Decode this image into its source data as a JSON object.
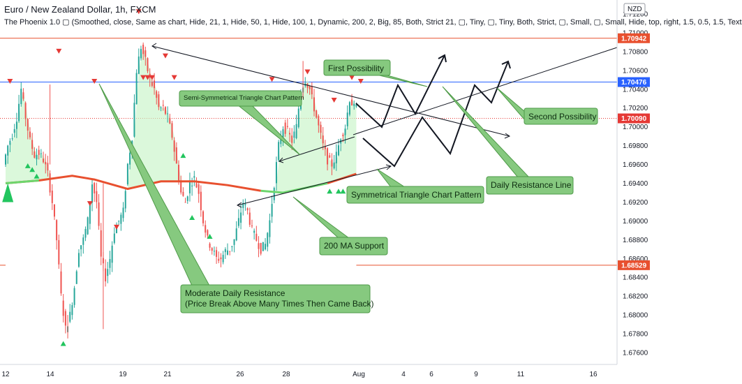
{
  "header": {
    "title": "Euro / New Zealand Dollar, 1h, FXCM",
    "indicator": "The Phoenix 1.0 ▢ (Smoothed, close, Same as chart, Hide, 21, 1, Hide, 50, 1, Hide, 100, 1, Dynamic, 200, 2, Big, 85, Both, Strict 21, ▢, Tiny, ▢, Tiny, Both, Strict, ▢, Small, ▢, Small, Hide, top, right, 1.5, 0.5, 1.5, Text"
  },
  "chart_data": {
    "type": "candlestick",
    "title": "Euro / New Zealand Dollar, 1h, FXCM",
    "currency": "NZD",
    "ylim": [
      1.676,
      1.712
    ],
    "y_ticks": [
      "1.71200",
      "1.71000",
      "1.70800",
      "1.70600",
      "1.70400",
      "1.70200",
      "1.70000",
      "1.69800",
      "1.69600",
      "1.69400",
      "1.69200",
      "1.69000",
      "1.68800",
      "1.68600",
      "1.68400",
      "1.68200",
      "1.68000",
      "1.67800",
      "1.67600"
    ],
    "x_ticks": [
      "12",
      "14",
      "19",
      "21",
      "26",
      "28",
      "Aug",
      "4",
      "6",
      "9",
      "11",
      "16"
    ],
    "price_lines": [
      {
        "value": 1.70942,
        "label": "1.70942",
        "color": "#e8502f"
      },
      {
        "value": 1.70476,
        "label": "1.70476",
        "color": "#2962ff"
      },
      {
        "value": 1.7009,
        "label": "1.70090",
        "color": "#e53935"
      },
      {
        "value": 1.68529,
        "label": "1.68529",
        "color": "#e8502f"
      }
    ],
    "price_path": [
      [
        0,
        1.696
      ],
      [
        2,
        1.698
      ],
      [
        4,
        1.6992
      ],
      [
        6,
        1.701
      ],
      [
        8,
        1.704
      ],
      [
        10,
        1.701
      ],
      [
        12,
        1.6985
      ],
      [
        14,
        1.697
      ],
      [
        16,
        1.6972
      ],
      [
        18,
        1.6965
      ],
      [
        20,
        1.695
      ],
      [
        22,
        1.692
      ],
      [
        24,
        1.688
      ],
      [
        26,
        1.682
      ],
      [
        28,
        1.6785
      ],
      [
        30,
        1.68
      ],
      [
        32,
        1.683
      ],
      [
        34,
        1.687
      ],
      [
        36,
        1.688
      ],
      [
        38,
        1.69
      ],
      [
        40,
        1.694
      ],
      [
        42,
        1.692
      ],
      [
        44,
        1.686
      ],
      [
        46,
        1.684
      ],
      [
        48,
        1.686
      ],
      [
        50,
        1.689
      ],
      [
        52,
        1.69
      ],
      [
        54,
        1.691
      ],
      [
        56,
        1.696
      ],
      [
        58,
        1.699
      ],
      [
        60,
        1.706
      ],
      [
        62,
        1.7085
      ],
      [
        64,
        1.707
      ],
      [
        66,
        1.705
      ],
      [
        68,
        1.704
      ],
      [
        70,
        1.702
      ],
      [
        72,
        1.702
      ],
      [
        74,
        1.701
      ],
      [
        76,
        1.699
      ],
      [
        78,
        1.696
      ],
      [
        80,
        1.693
      ],
      [
        82,
        1.692
      ],
      [
        84,
        1.694
      ],
      [
        86,
        1.6945
      ],
      [
        88,
        1.693
      ],
      [
        90,
        1.69
      ],
      [
        92,
        1.688
      ],
      [
        94,
        1.687
      ],
      [
        96,
        1.686
      ],
      [
        98,
        1.686
      ],
      [
        100,
        1.6868
      ],
      [
        102,
        1.687
      ],
      [
        104,
        1.688
      ],
      [
        106,
        1.69
      ],
      [
        108,
        1.692
      ],
      [
        110,
        1.691
      ],
      [
        112,
        1.689
      ],
      [
        114,
        1.688
      ],
      [
        116,
        1.687
      ],
      [
        118,
        1.6875
      ],
      [
        120,
        1.69
      ],
      [
        122,
        1.694
      ],
      [
        124,
        1.698
      ],
      [
        126,
        1.7
      ],
      [
        128,
        1.6995
      ],
      [
        130,
        1.6985
      ],
      [
        132,
        1.7
      ],
      [
        134,
        1.704
      ],
      [
        136,
        1.705
      ],
      [
        138,
        1.704
      ],
      [
        140,
        1.702
      ],
      [
        142,
        1.7
      ],
      [
        144,
        1.698
      ],
      [
        146,
        1.6965
      ],
      [
        148,
        1.696
      ],
      [
        150,
        1.697
      ],
      [
        152,
        1.699
      ],
      [
        154,
        1.7
      ],
      [
        156,
        1.703
      ],
      [
        158,
        1.702
      ]
    ],
    "ma200_label": "200 MA",
    "annotations": {
      "semi_symmetrical": "Semi-Symmetrical Triangle Chart Pattern",
      "first_possibility": "First Possibility",
      "second_possibility": "Second Possibility",
      "daily_resistance": "Daily Resistance Line",
      "symmetrical": "Symmetrical Triangle Chart Pattern",
      "ma_support": "200 MA Support",
      "moderate_resistance_1": "Moderate Daily Resistance",
      "moderate_resistance_2": "(Price Break Above Many Times Then Came Back)"
    },
    "colors": {
      "up": "#26a69a",
      "down": "#ef5350",
      "fill": "#c8f5c8",
      "ma_red": "#e8502f",
      "ma_green": "#6dd66d",
      "box_fill": "#86c97f",
      "box_stroke": "#4e9a48"
    }
  }
}
